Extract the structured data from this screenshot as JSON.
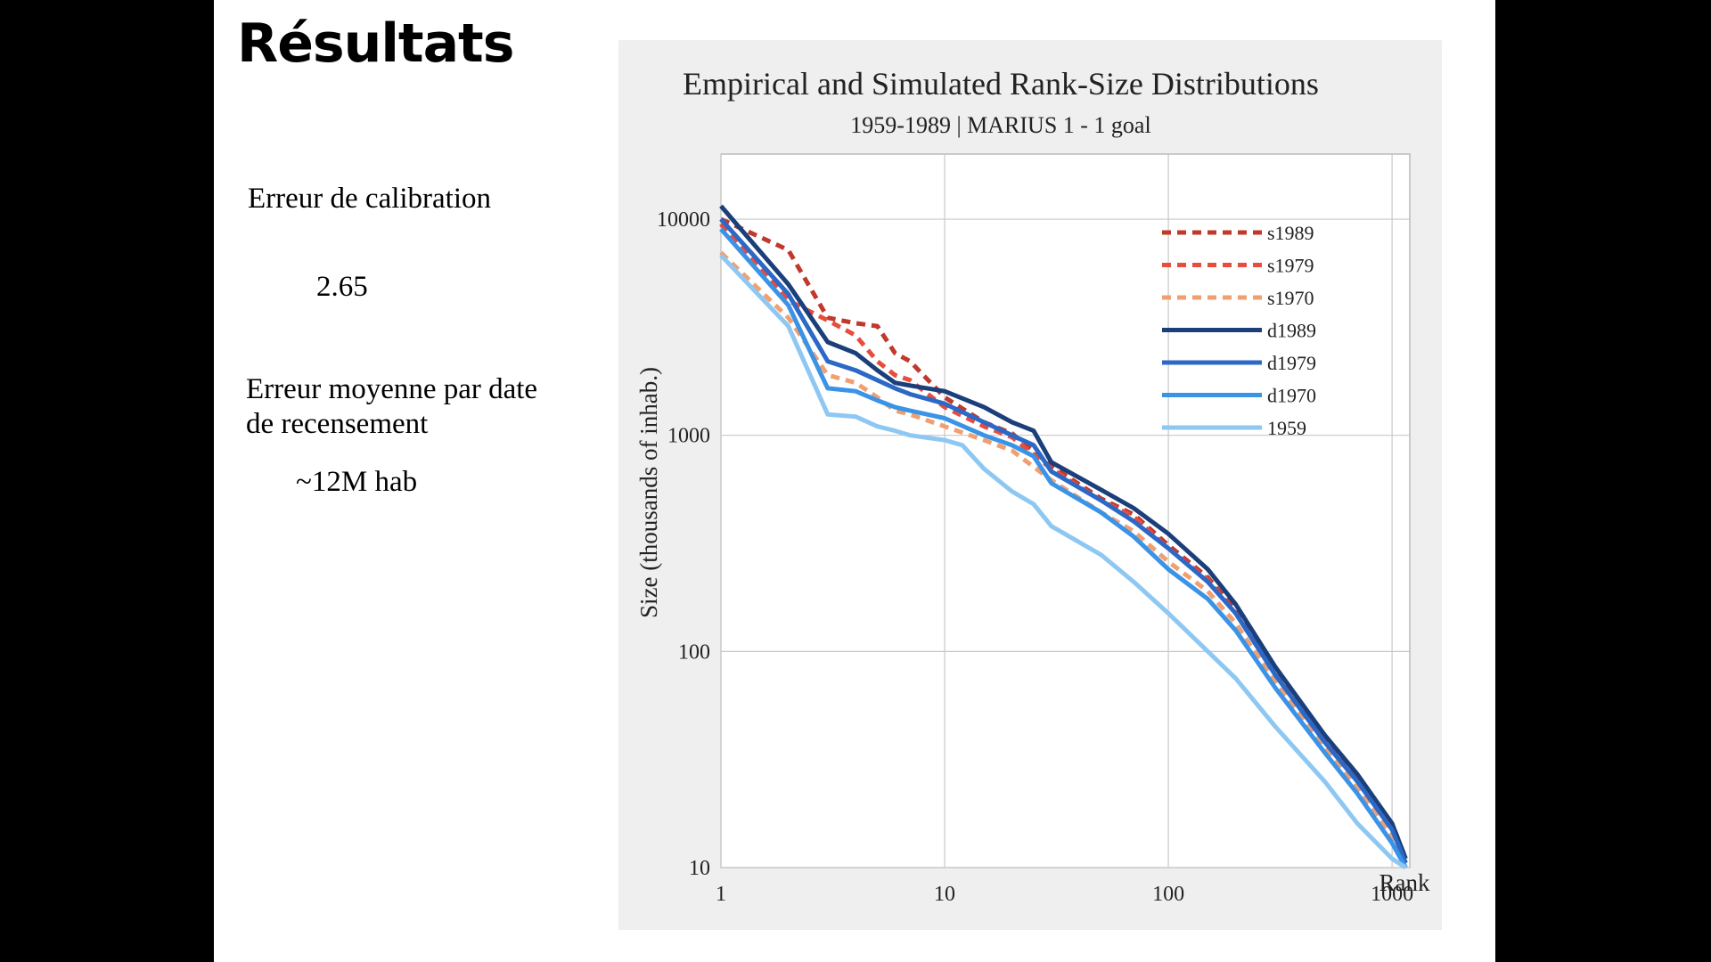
{
  "slide": {
    "title": "Résultats",
    "calibration_label": "Erreur de calibration",
    "calibration_value": "2.65",
    "mean_error_label_line1": "Erreur moyenne par date",
    "mean_error_label_line2": "de recensement",
    "mean_error_value": "~12M hab"
  },
  "chart_data": {
    "type": "line",
    "title": "Empirical and Simulated Rank-Size Distributions",
    "subtitle": "1959-1989 | MARIUS 1 - 1 goal",
    "xlabel": "Rank",
    "ylabel": "Size (thousands of inhab.)",
    "xscale": "log",
    "yscale": "log",
    "xlim": [
      1,
      1200
    ],
    "ylim": [
      10,
      20000
    ],
    "x_ticks": [
      "1",
      "10",
      "100",
      "1000"
    ],
    "y_ticks": [
      "10",
      "100",
      "1000",
      "10000"
    ],
    "grid": true,
    "legend_position": "top-right",
    "series": [
      {
        "name": "s1989",
        "color": "#c0392b",
        "dash": true,
        "x": [
          1,
          2,
          3,
          4,
          5,
          6,
          7,
          10,
          15,
          20,
          30,
          50,
          70,
          100,
          150,
          200,
          300,
          500,
          700,
          1000,
          1150
        ],
        "y": [
          10000,
          7200,
          3500,
          3300,
          3200,
          2400,
          2200,
          1500,
          1150,
          1020,
          720,
          510,
          430,
          310,
          220,
          155,
          80,
          40,
          26,
          16,
          11
        ]
      },
      {
        "name": "s1979",
        "color": "#e74c3c",
        "dash": true,
        "x": [
          1,
          2,
          3,
          4,
          5,
          6,
          7,
          10,
          15,
          20,
          30,
          50,
          70,
          100,
          150,
          200,
          300,
          500,
          700,
          1000,
          1150
        ],
        "y": [
          9500,
          4200,
          3400,
          2900,
          2200,
          1900,
          1800,
          1350,
          1100,
          980,
          700,
          500,
          420,
          300,
          215,
          150,
          78,
          39,
          25,
          15,
          10.5
        ]
      },
      {
        "name": "s1970",
        "color": "#f0a070",
        "dash": true,
        "x": [
          1,
          2,
          3,
          4,
          5,
          6,
          7,
          10,
          15,
          20,
          30,
          50,
          70,
          100,
          150,
          200,
          300,
          500,
          700,
          1000,
          1150
        ],
        "y": [
          7000,
          3500,
          1900,
          1750,
          1500,
          1300,
          1250,
          1100,
          950,
          850,
          620,
          440,
          360,
          260,
          190,
          135,
          72,
          36,
          23,
          14,
          10
        ]
      },
      {
        "name": "d1989",
        "color": "#1a3f7a",
        "dash": false,
        "x": [
          1,
          2,
          3,
          4,
          5,
          6,
          7,
          10,
          15,
          20,
          25,
          30,
          50,
          70,
          100,
          150,
          200,
          300,
          500,
          700,
          1000,
          1150
        ],
        "y": [
          11500,
          5000,
          2700,
          2400,
          2000,
          1750,
          1700,
          1600,
          1350,
          1150,
          1050,
          750,
          560,
          460,
          350,
          240,
          165,
          85,
          41,
          27,
          16,
          11
        ]
      },
      {
        "name": "d1979",
        "color": "#2c68c6",
        "dash": false,
        "x": [
          1,
          2,
          3,
          4,
          5,
          6,
          7,
          10,
          15,
          20,
          25,
          30,
          50,
          70,
          100,
          150,
          200,
          300,
          500,
          700,
          1000,
          1150
        ],
        "y": [
          10000,
          4500,
          2200,
          2000,
          1800,
          1650,
          1550,
          1400,
          1150,
          1000,
          900,
          680,
          500,
          400,
          300,
          210,
          150,
          78,
          38,
          25,
          15,
          10.5
        ]
      },
      {
        "name": "d1970",
        "color": "#3a93e6",
        "dash": false,
        "x": [
          1,
          2,
          3,
          4,
          5,
          6,
          7,
          10,
          15,
          20,
          25,
          30,
          50,
          70,
          100,
          150,
          200,
          300,
          500,
          700,
          1000,
          1150
        ],
        "y": [
          9000,
          4000,
          1650,
          1600,
          1450,
          1350,
          1300,
          1200,
          1000,
          900,
          800,
          600,
          440,
          340,
          240,
          175,
          125,
          68,
          34,
          22,
          13,
          10
        ]
      },
      {
        "name": "1959",
        "color": "#8ec8f2",
        "dash": false,
        "x": [
          1,
          2,
          3,
          4,
          5,
          6,
          7,
          10,
          12,
          15,
          20,
          25,
          30,
          50,
          70,
          100,
          150,
          200,
          300,
          500,
          700,
          1000,
          1150
        ],
        "y": [
          6800,
          3200,
          1250,
          1220,
          1100,
          1050,
          1000,
          950,
          900,
          700,
          550,
          480,
          380,
          280,
          210,
          150,
          100,
          75,
          45,
          25,
          16,
          11,
          10
        ]
      }
    ]
  }
}
